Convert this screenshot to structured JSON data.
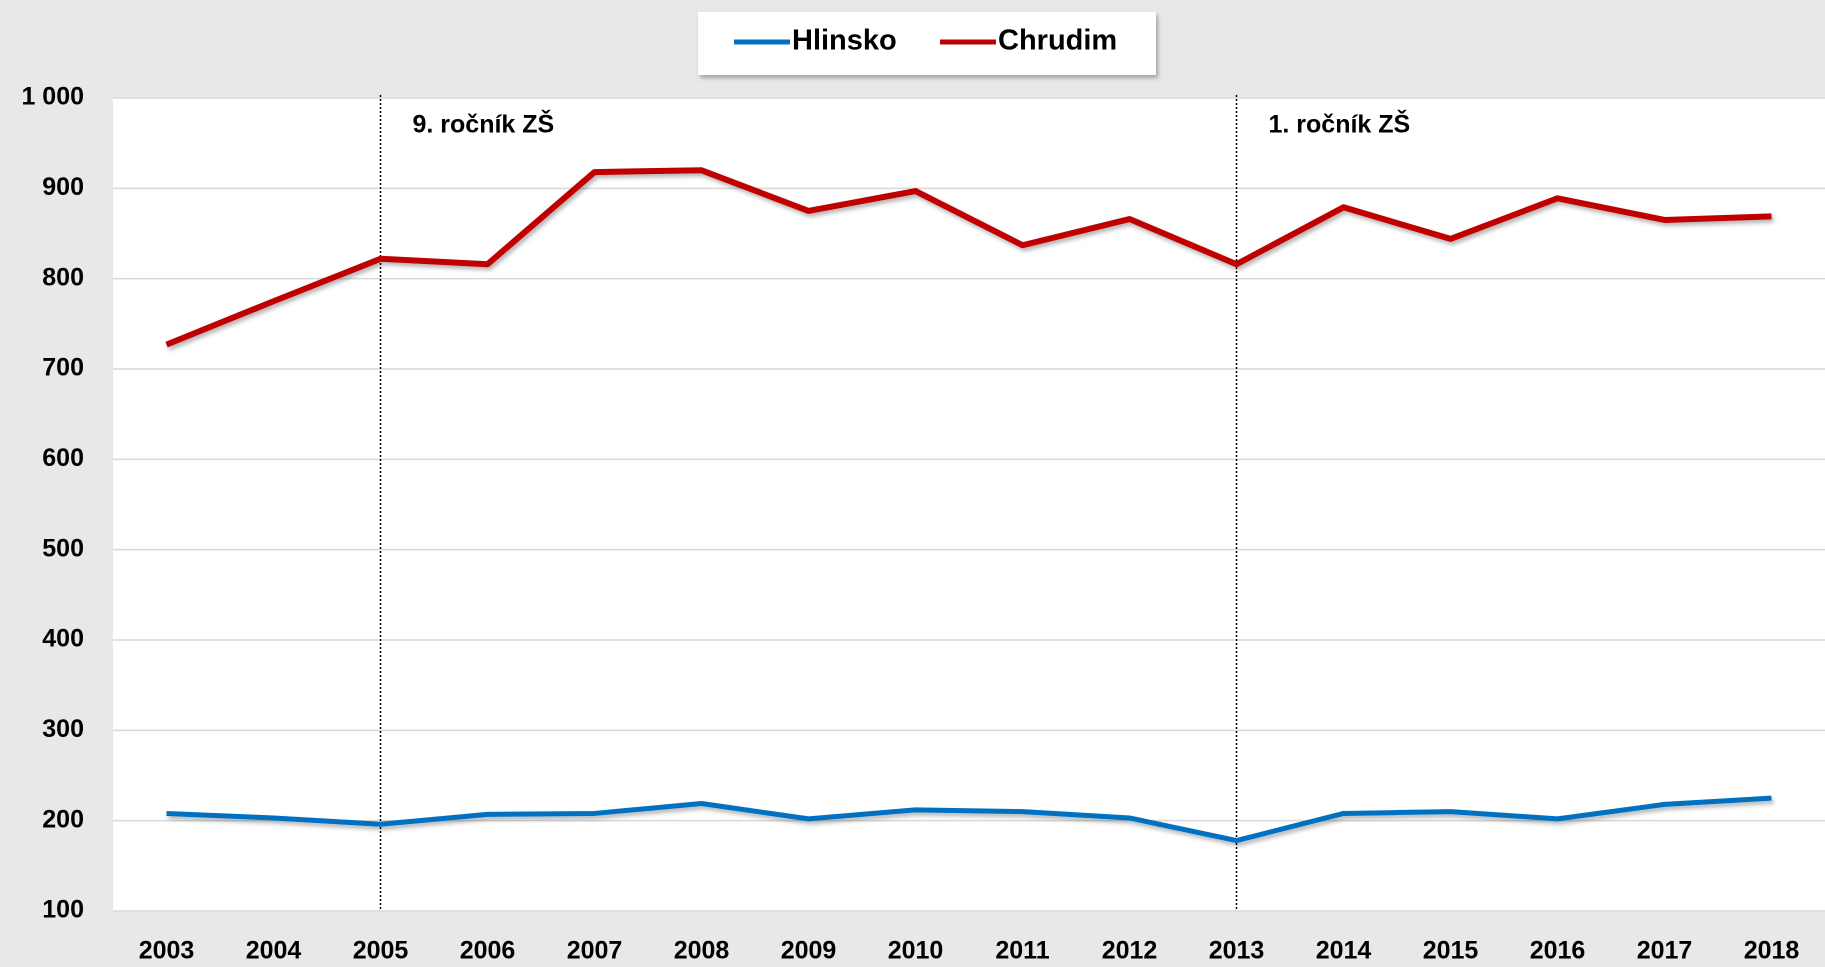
{
  "chart_data": {
    "type": "line",
    "categories": [
      "2003",
      "2004",
      "2005",
      "2006",
      "2007",
      "2008",
      "2009",
      "2010",
      "2011",
      "2012",
      "2013",
      "2014",
      "2015",
      "2016",
      "2017",
      "2018"
    ],
    "series": [
      {
        "name": "Hlinsko",
        "color": "#0070c0",
        "values": [
          208,
          203,
          196,
          207,
          208,
          219,
          202,
          212,
          210,
          203,
          178,
          208,
          210,
          202,
          218,
          225
        ]
      },
      {
        "name": "Chrudim",
        "color": "#c00000",
        "values": [
          727,
          775,
          822,
          816,
          918,
          920,
          875,
          897,
          837,
          866,
          816,
          879,
          844,
          889,
          865,
          869
        ]
      }
    ],
    "ylim": [
      100,
      1000
    ],
    "yticks": [
      100,
      200,
      300,
      400,
      500,
      600,
      700,
      800,
      900,
      {
        "value": 1000,
        "label": "1 000"
      }
    ],
    "grid": true,
    "legend": "top",
    "annotations": [
      {
        "x": "2005",
        "text": "9. ročník ZŠ"
      },
      {
        "x": "2013",
        "text": "1. ročník ZŠ"
      }
    ]
  }
}
